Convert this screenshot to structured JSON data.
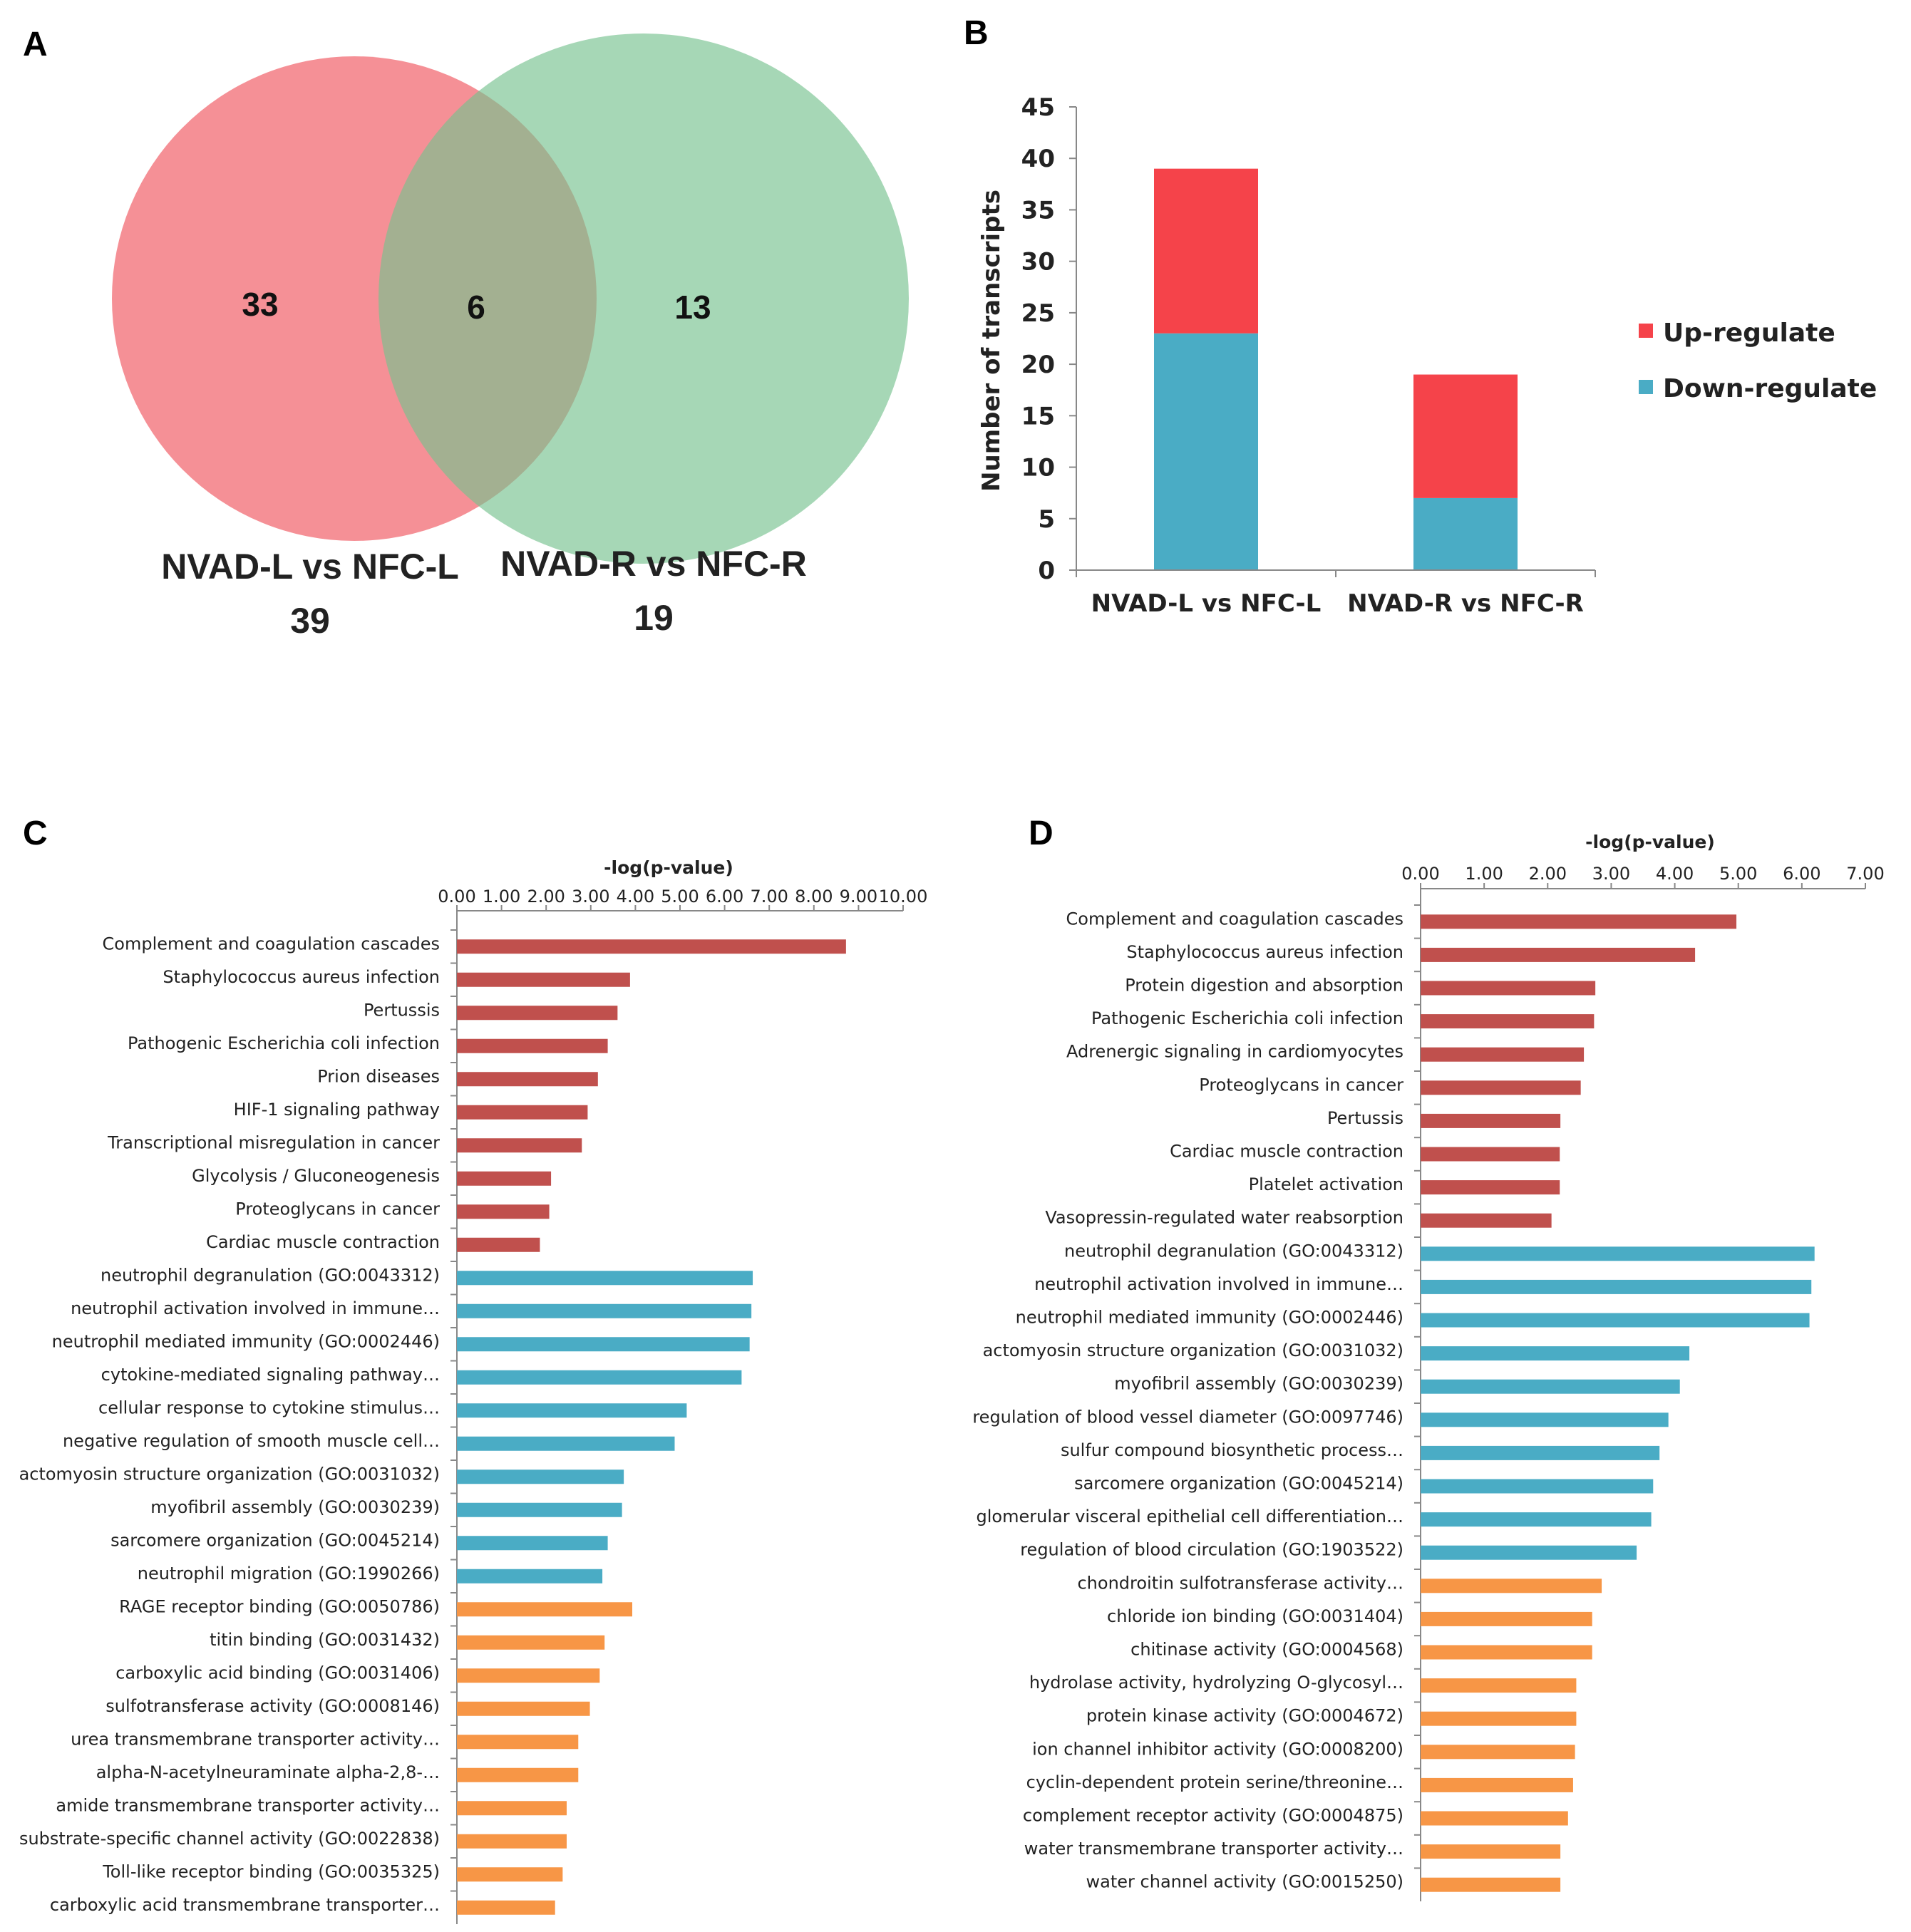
{
  "colors": {
    "up": "#f5434a",
    "down": "#4aacc5",
    "kegg": "#c0504d",
    "go_bp": "#4aacc5",
    "go_mf": "#f79646",
    "venn_left": "#f26b73",
    "venn_right": "#76c18f",
    "axis": "#888888"
  },
  "panels": {
    "a": "A",
    "b": "B",
    "c": "C",
    "d": "D"
  },
  "chart_data": [
    {
      "id": "A",
      "type": "venn",
      "sets": [
        {
          "name": "NVAD-L vs NFC-L",
          "total": "39",
          "only": "33"
        },
        {
          "name": "NVAD-R vs NFC-R",
          "total": "19",
          "only": "13"
        }
      ],
      "intersection": "6"
    },
    {
      "id": "B",
      "type": "bar",
      "stacked": true,
      "categories": [
        "NVAD-L vs NFC-L",
        "NVAD-R vs NFC-R"
      ],
      "series": [
        {
          "name": "Down-regulate",
          "values": [
            23,
            7
          ]
        },
        {
          "name": "Up-regulate",
          "values": [
            16,
            12
          ]
        }
      ],
      "legend": [
        "Up-regulate",
        "Down-regulate"
      ],
      "ylabel": "Number of transcripts",
      "ylim": [
        0,
        45
      ],
      "yticks": [
        "0",
        "5",
        "10",
        "15",
        "20",
        "25",
        "30",
        "35",
        "40",
        "45"
      ]
    },
    {
      "id": "C",
      "type": "bar",
      "orientation": "horizontal",
      "xlabel": "-log(p-value)",
      "xlim": [
        0,
        10
      ],
      "xticks": [
        "0.00",
        "1.00",
        "2.00",
        "3.00",
        "4.00",
        "5.00",
        "6.00",
        "7.00",
        "8.00",
        "9.00",
        "10.00"
      ],
      "categories": [
        "Complement and coagulation cascades",
        "Staphylococcus aureus infection",
        "Pertussis",
        "Pathogenic Escherichia coli infection",
        "Prion diseases",
        "HIF-1 signaling pathway",
        "Transcriptional misregulation in cancer",
        "Glycolysis / Gluconeogenesis",
        "Proteoglycans in cancer",
        "Cardiac muscle contraction",
        "neutrophil degranulation (GO:0043312)",
        "neutrophil activation involved in immune…",
        "neutrophil mediated immunity (GO:0002446)",
        "cytokine-mediated signaling pathway…",
        "cellular response to cytokine stimulus…",
        "negative regulation of smooth muscle cell…",
        "actomyosin structure organization (GO:0031032)",
        "myofibril assembly (GO:0030239)",
        "sarcomere organization (GO:0045214)",
        "neutrophil migration (GO:1990266)",
        "RAGE receptor binding (GO:0050786)",
        "titin binding (GO:0031432)",
        "carboxylic acid binding (GO:0031406)",
        "sulfotransferase activity (GO:0008146)",
        "urea transmembrane transporter activity…",
        "alpha-N-acetylneuraminate alpha-2,8-…",
        "amide transmembrane transporter activity…",
        "substrate-specific channel activity (GO:0022838)",
        "Toll-like receptor binding (GO:0035325)",
        "carboxylic acid transmembrane transporter…"
      ],
      "values": [
        8.72,
        3.88,
        3.6,
        3.38,
        3.16,
        2.93,
        2.8,
        2.11,
        2.07,
        1.86,
        6.63,
        6.6,
        6.56,
        6.38,
        5.15,
        4.88,
        3.74,
        3.7,
        3.38,
        3.26,
        3.93,
        3.31,
        3.2,
        2.98,
        2.72,
        2.72,
        2.46,
        2.46,
        2.37,
        2.2
      ],
      "groups": [
        "kegg",
        "kegg",
        "kegg",
        "kegg",
        "kegg",
        "kegg",
        "kegg",
        "kegg",
        "kegg",
        "kegg",
        "go_bp",
        "go_bp",
        "go_bp",
        "go_bp",
        "go_bp",
        "go_bp",
        "go_bp",
        "go_bp",
        "go_bp",
        "go_bp",
        "go_mf",
        "go_mf",
        "go_mf",
        "go_mf",
        "go_mf",
        "go_mf",
        "go_mf",
        "go_mf",
        "go_mf",
        "go_mf"
      ]
    },
    {
      "id": "D",
      "type": "bar",
      "orientation": "horizontal",
      "xlabel": "-log(p-value)",
      "xlim": [
        0,
        7
      ],
      "xticks": [
        "0.00",
        "1.00",
        "2.00",
        "3.00",
        "4.00",
        "5.00",
        "6.00",
        "7.00"
      ],
      "categories": [
        "Complement and coagulation cascades",
        "Staphylococcus aureus infection",
        "Protein digestion and absorption",
        "Pathogenic Escherichia coli infection",
        "Adrenergic signaling in cardiomyocytes",
        "Proteoglycans in cancer",
        "Pertussis",
        "Cardiac muscle contraction",
        "Platelet activation",
        "Vasopressin-regulated water reabsorption",
        "neutrophil degranulation (GO:0043312)",
        "neutrophil activation involved in immune…",
        "neutrophil mediated immunity (GO:0002446)",
        "actomyosin structure organization (GO:0031032)",
        "myofibril assembly (GO:0030239)",
        "regulation of blood vessel diameter (GO:0097746)",
        "sulfur compound biosynthetic process…",
        "sarcomere organization (GO:0045214)",
        "glomerular visceral epithelial cell differentiation…",
        "regulation of blood circulation (GO:1903522)",
        "chondroitin sulfotransferase activity…",
        "chloride ion binding (GO:0031404)",
        "chitinase activity (GO:0004568)",
        "hydrolase activity, hydrolyzing O-glycosyl…",
        "protein kinase activity (GO:0004672)",
        "ion channel inhibitor activity (GO:0008200)",
        "cyclin-dependent protein serine/threonine…",
        "complement receptor activity (GO:0004875)",
        "water transmembrane transporter activity…",
        "water channel activity (GO:0015250)"
      ],
      "values": [
        4.97,
        4.32,
        2.75,
        2.73,
        2.57,
        2.52,
        2.2,
        2.19,
        2.19,
        2.06,
        6.2,
        6.15,
        6.12,
        4.23,
        4.08,
        3.9,
        3.76,
        3.66,
        3.63,
        3.4,
        2.85,
        2.7,
        2.7,
        2.45,
        2.45,
        2.43,
        2.4,
        2.32,
        2.2,
        2.2
      ],
      "groups": [
        "kegg",
        "kegg",
        "kegg",
        "kegg",
        "kegg",
        "kegg",
        "kegg",
        "kegg",
        "kegg",
        "kegg",
        "go_bp",
        "go_bp",
        "go_bp",
        "go_bp",
        "go_bp",
        "go_bp",
        "go_bp",
        "go_bp",
        "go_bp",
        "go_bp",
        "go_mf",
        "go_mf",
        "go_mf",
        "go_mf",
        "go_mf",
        "go_mf",
        "go_mf",
        "go_mf",
        "go_mf",
        "go_mf"
      ]
    }
  ]
}
